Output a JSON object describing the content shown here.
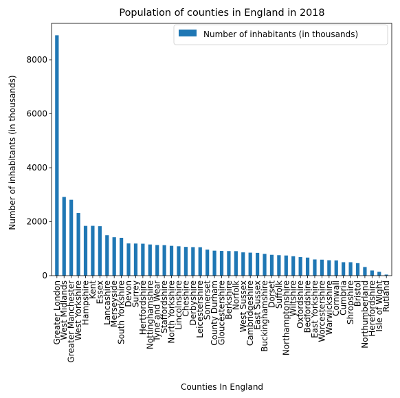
{
  "chart_data": {
    "type": "bar",
    "title": "Population of counties in England in 2018",
    "xlabel": "Counties In England",
    "ylabel": "Number of inhabitants (in thousands)",
    "ylim": [
      0,
      9350
    ],
    "yticks": [
      "0",
      "2000",
      "4000",
      "6000",
      "8000"
    ],
    "grid": false,
    "legend_position": "top-right",
    "colors": {
      "bar": "#1f77b4"
    },
    "categories": [
      "Greater London",
      "West Midlands",
      "Greater Manchester",
      "West Yorkshire",
      "Hampshire",
      "Kent",
      "Essex",
      "Lancashire",
      "Merseyside",
      "South Yorkshire",
      "Devon",
      "Surrey",
      "Hertfordshire",
      "Nottinghamshire",
      "Tyne and Wear",
      "Staffordshire",
      "North Yorkshire",
      "Lincolnshire",
      "Cheshire",
      "Derbyshire",
      "Leicestershire",
      "Somerset",
      "County Durham",
      "Gloucestershire",
      "Berkshire",
      "Norfolk",
      "West Sussex",
      "Cambridgeshire",
      "East Sussex",
      "Buckinghamshire",
      "Dorset",
      "Suffolk",
      "Northamptonshire",
      "Wiltshire",
      "Oxfordshire",
      "Bedfordshire",
      "East Yorkshire",
      "Worcestershire",
      "Warwickshire",
      "Cornwall",
      "Cumbria",
      "Shropshire",
      "Bristol",
      "Northumberland",
      "Herefordshire",
      "Isle of Wight",
      "Rutland"
    ],
    "series": [
      {
        "name": "Number of inhabitants (in thousands)",
        "values": [
          8908,
          2916,
          2812,
          2321,
          1844,
          1846,
          1832,
          1498,
          1423,
          1402,
          1194,
          1190,
          1184,
          1155,
          1136,
          1131,
          1105,
          1088,
          1066,
          1057,
          1054,
          965,
          926,
          916,
          911,
          908,
          863,
          852,
          844,
          808,
          772,
          758,
          747,
          720,
          687,
          669,
          600,
          592,
          571,
          565,
          498,
          498,
          463,
          320,
          192,
          141,
          40
        ]
      }
    ]
  }
}
